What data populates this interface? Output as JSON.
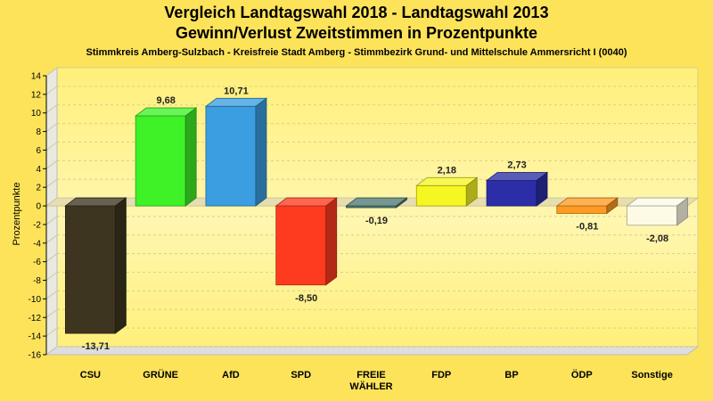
{
  "chart_data": {
    "type": "bar",
    "title": "Vergleich Landtagswahl 2018 - Landtagswahl 2013",
    "subtitle": "Gewinn/Verlust Zweitstimmen in Prozentpunkte",
    "caption": "Stimmkreis Amberg-Sulzbach - Kreisfreie Stadt Amberg - Stimmbezirk Grund- und Mittelschule Ammersricht I (0040)",
    "ylabel": "Prozentpunkte",
    "xlabel": "",
    "ylim": [
      -16,
      14
    ],
    "yticks": [
      14,
      12,
      10,
      8,
      6,
      4,
      2,
      0,
      -2,
      -4,
      -6,
      -8,
      -10,
      -12,
      -14,
      -16
    ],
    "grid": true,
    "categories": [
      [
        "CSU"
      ],
      [
        "GRÜNE"
      ],
      [
        "AfD"
      ],
      [
        "SPD"
      ],
      [
        "FREIE",
        "WÄHLER"
      ],
      [
        "FDP"
      ],
      [
        "BP"
      ],
      [
        "ÖDP"
      ],
      [
        "Sonstige"
      ]
    ],
    "values": [
      -13.71,
      9.68,
      10.71,
      -8.5,
      -0.19,
      2.18,
      2.73,
      -0.81,
      -2.08
    ],
    "value_labels": [
      "-13,71",
      "9,68",
      "10,71",
      "-8,50",
      "-0,19",
      "2,18",
      "2,73",
      "-0,81",
      "-2,08"
    ],
    "colors": [
      "#3d3520",
      "#3ef227",
      "#3a9ee0",
      "#ff3b1f",
      "#4f7a70",
      "#f6f623",
      "#2b2ea6",
      "#ff9b22",
      "#fdfbe6"
    ]
  }
}
